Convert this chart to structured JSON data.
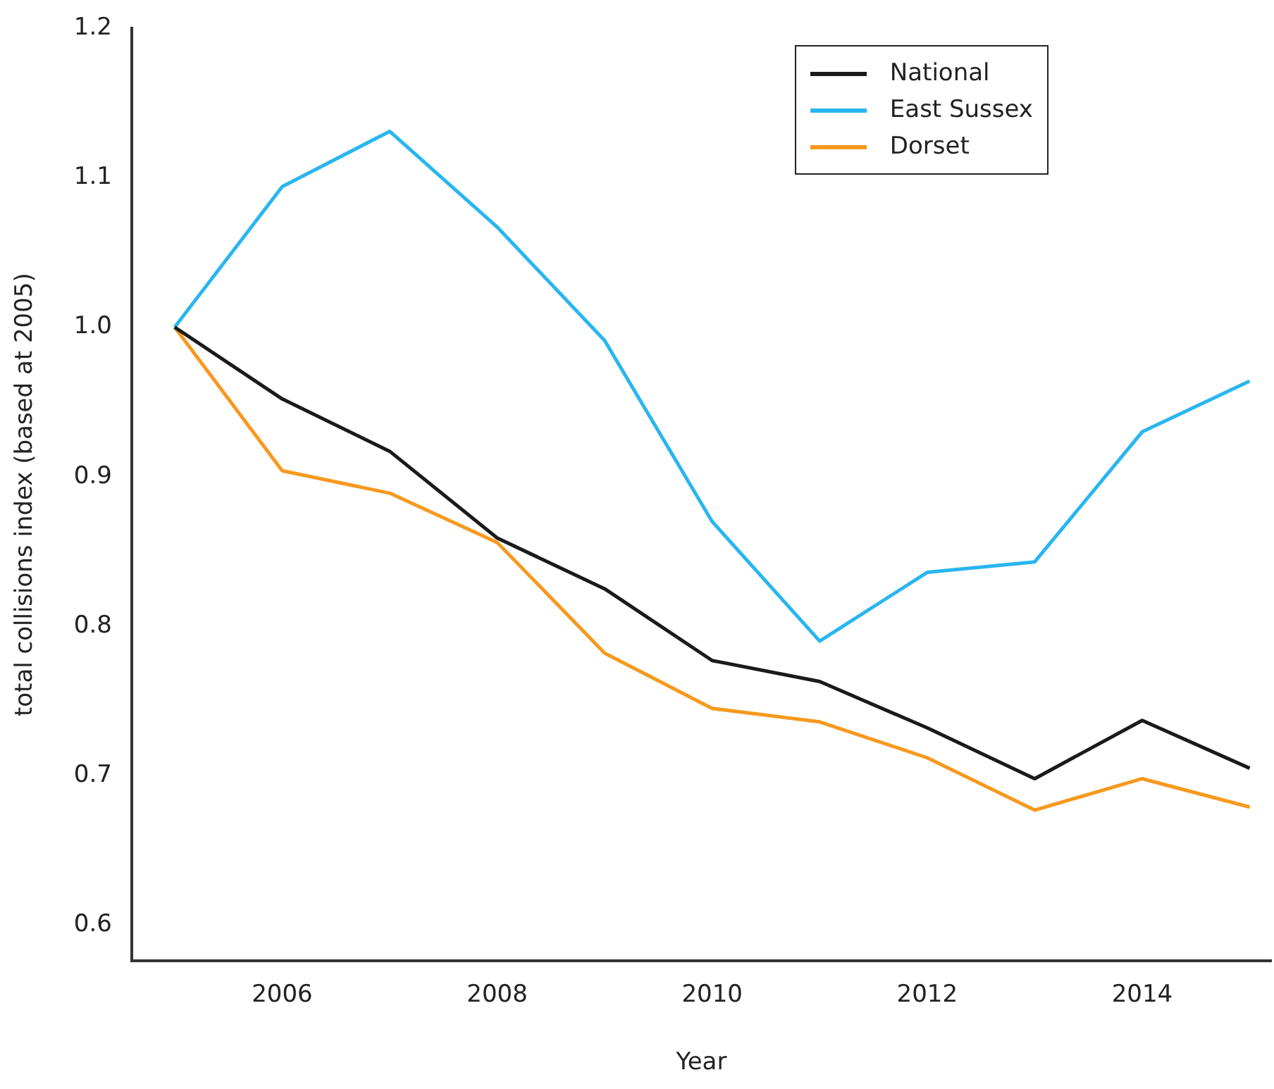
{
  "chart_data": {
    "type": "line",
    "xlabel": "Year",
    "ylabel": "total collisions index (based at 2005)",
    "x": [
      2005,
      2006,
      2007,
      2008,
      2009,
      2010,
      2011,
      2012,
      2013,
      2014,
      2015
    ],
    "series": [
      {
        "name": "National",
        "color": "#1a1a1a",
        "values": [
          1.0,
          0.952,
          0.917,
          0.859,
          0.825,
          0.777,
          0.763,
          0.732,
          0.698,
          0.737,
          0.705
        ]
      },
      {
        "name": "East Sussex",
        "color": "#29b6f0",
        "values": [
          1.0,
          1.094,
          1.131,
          1.067,
          0.991,
          0.87,
          0.79,
          0.836,
          0.843,
          0.93,
          0.964
        ]
      },
      {
        "name": "Dorset",
        "color": "#f7991e",
        "values": [
          1.0,
          0.904,
          0.889,
          0.856,
          0.782,
          0.745,
          0.736,
          0.712,
          0.677,
          0.698,
          0.679
        ]
      }
    ],
    "xlim": [
      2004.6,
      2015.2
    ],
    "xticks": [
      2006,
      2008,
      2010,
      2012,
      2014
    ],
    "ylim": [
      0.576,
      1.2
    ],
    "yticks": [
      0.6,
      0.7,
      0.8,
      0.9,
      {
        "value": 1,
        "label": "1.0"
      },
      1.1,
      1.2
    ],
    "grid": false,
    "legend": "top right",
    "marker": "none",
    "line_style": "solid"
  }
}
